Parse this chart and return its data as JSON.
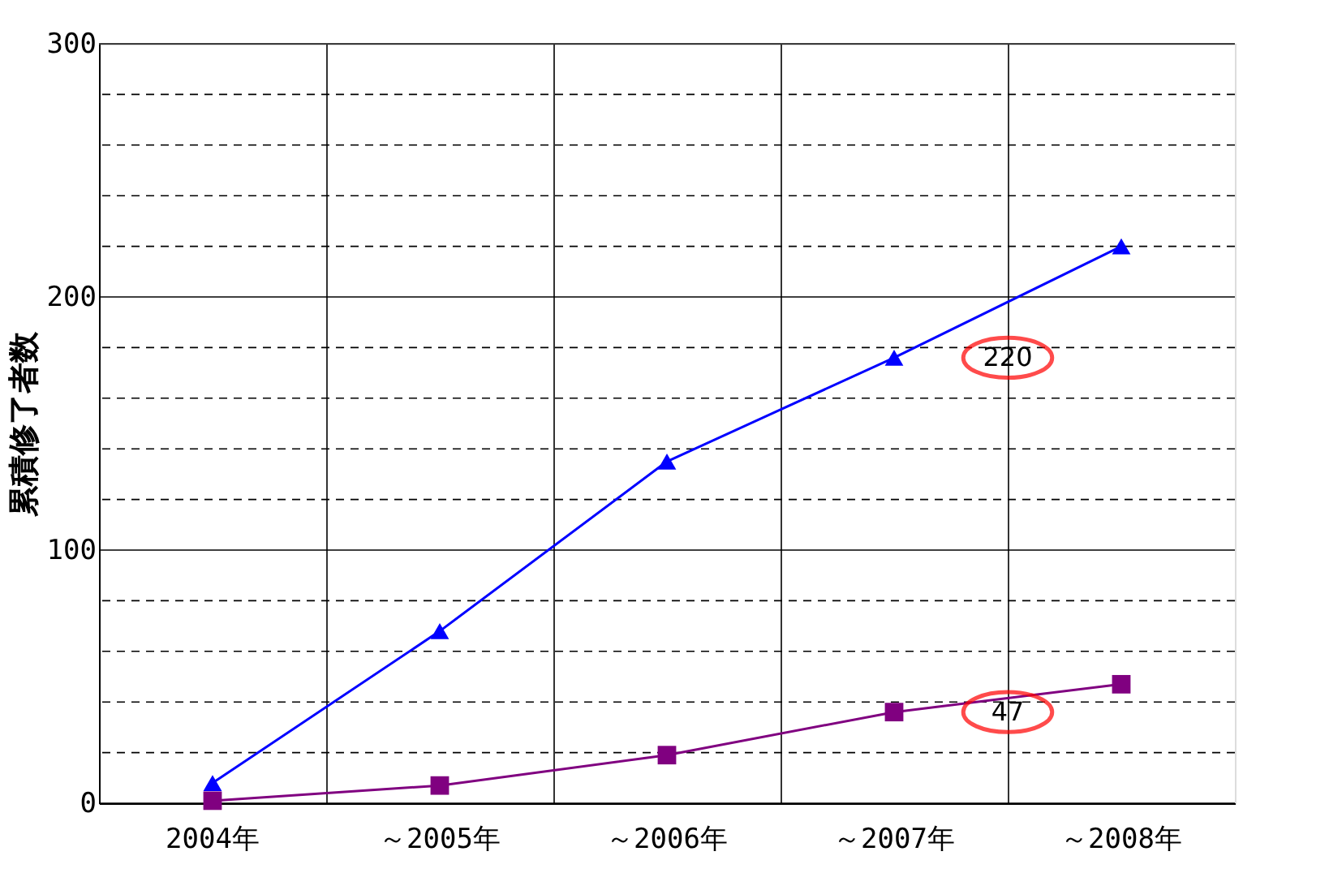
{
  "chart_data": {
    "type": "line",
    "ylabel": "累積修了者数",
    "categories": [
      "2004年",
      "～2005年",
      "～2006年",
      "～2007年",
      "～2008年"
    ],
    "series": [
      {
        "color": "#0000ff",
        "marker": "triangle",
        "values": [
          8,
          68,
          135,
          176,
          220
        ]
      },
      {
        "color": "#800080",
        "marker": "square",
        "values": [
          1,
          7,
          19,
          36,
          47
        ]
      }
    ],
    "ylim": [
      0,
      300
    ],
    "yticks": [
      0,
      {
        "value": 20,
        "label": null
      },
      {
        "value": 40,
        "label": null
      },
      {
        "value": 60,
        "label": null
      },
      {
        "value": 80,
        "label": null
      },
      100,
      {
        "value": 120,
        "label": null
      },
      {
        "value": 140,
        "label": null
      },
      {
        "value": 160,
        "label": null
      },
      {
        "value": 180,
        "label": null
      },
      200,
      {
        "value": 220,
        "label": null
      },
      {
        "value": 240,
        "label": null
      },
      {
        "value": 260,
        "label": null
      },
      {
        "value": 280,
        "label": null
      },
      300
    ],
    "grid": true,
    "line_style": "solid",
    "annotations": [
      "220",
      "47"
    ]
  }
}
